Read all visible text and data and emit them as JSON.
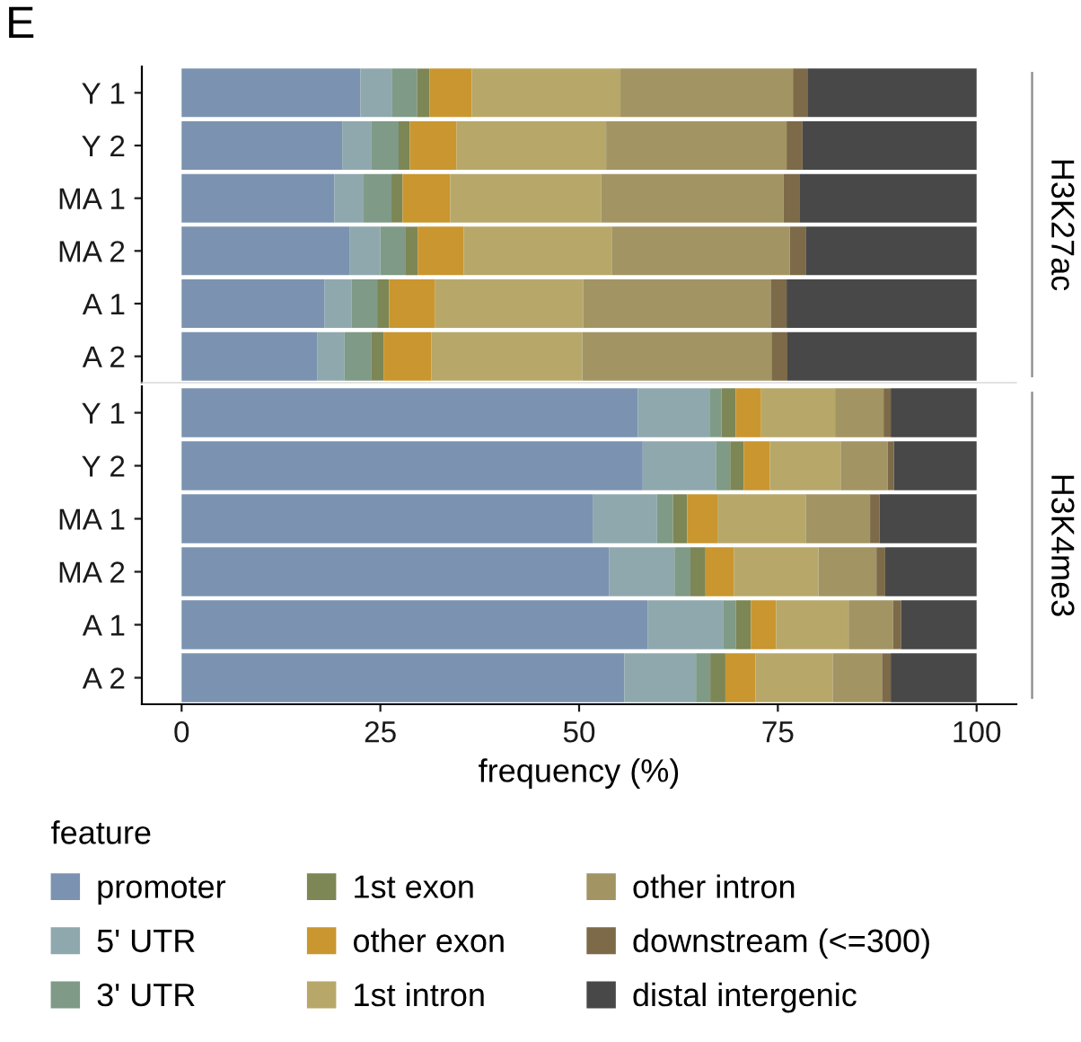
{
  "chart_data": [
    {
      "type": "bar",
      "orientation": "horizontal",
      "stacked": true,
      "annotations": [
        "E",
        {
          "text": "H3K27ac"
        }
      ],
      "categories": [
        "Y 1",
        "Y 2",
        "MA 1",
        "MA 2",
        "A 1",
        "A 2"
      ],
      "xlim": [
        -5,
        105
      ],
      "xticks": [
        0,
        25,
        50,
        75,
        100
      ],
      "tick_labels": "y",
      "grid": false,
      "legend": "bottom",
      "series": [
        {
          "name": "promoter",
          "color": "#7b93b0",
          "values": [
            22.5,
            20.2,
            19.2,
            21.1,
            18.0,
            17.1
          ]
        },
        {
          "name": "5' UTR",
          "color": "#8fa8ad",
          "values": [
            4.0,
            3.7,
            3.7,
            3.9,
            3.4,
            3.4
          ]
        },
        {
          "name": "3' UTR",
          "color": "#7f9a86",
          "values": [
            3.1,
            3.4,
            3.5,
            3.2,
            3.2,
            3.4
          ]
        },
        {
          "name": "1st exon",
          "color": "#7d8655",
          "values": [
            1.6,
            1.4,
            1.4,
            1.5,
            1.5,
            1.5
          ]
        },
        {
          "name": "other exon",
          "color": "#c9962f",
          "values": [
            5.3,
            5.9,
            6.0,
            5.8,
            5.8,
            6.0
          ]
        },
        {
          "name": "1st intron",
          "color": "#b7a86a",
          "values": [
            18.7,
            18.8,
            19.0,
            18.6,
            18.6,
            19.0
          ]
        },
        {
          "name": "other intron",
          "color": "#a29563",
          "values": [
            21.7,
            22.7,
            22.9,
            22.4,
            23.6,
            23.8
          ]
        },
        {
          "name": "downstream (<=300)",
          "color": "#7d6a48",
          "values": [
            1.9,
            2.0,
            2.0,
            2.0,
            2.0,
            2.0
          ]
        },
        {
          "name": "distal intergenic",
          "color": "#484848",
          "values": [
            21.2,
            21.9,
            22.3,
            21.5,
            23.9,
            23.8
          ]
        }
      ]
    },
    {
      "type": "bar",
      "orientation": "horizontal",
      "stacked": true,
      "annotations": [
        {
          "text": "H3K4me3"
        }
      ],
      "xlabel": "frequency (%)",
      "legend_title": "feature",
      "categories": [
        "Y 1",
        "Y 2",
        "MA 1",
        "MA 2",
        "A 1",
        "A 2"
      ],
      "xlim": [
        -5,
        105
      ],
      "xticks": [
        0,
        25,
        50,
        75,
        100
      ],
      "grid": false,
      "legend": "bottom",
      "series": [
        {
          "name": "promoter",
          "color": "#7b93b0",
          "values": [
            57.4,
            58.0,
            51.7,
            53.8,
            58.6,
            55.7
          ]
        },
        {
          "name": "5' UTR",
          "color": "#8fa8ad",
          "values": [
            9.0,
            9.2,
            8.1,
            8.2,
            9.5,
            9.0
          ]
        },
        {
          "name": "3' UTR",
          "color": "#7f9a86",
          "values": [
            1.5,
            1.8,
            2.0,
            2.0,
            1.6,
            1.8
          ]
        },
        {
          "name": "1st exon",
          "color": "#7d8655",
          "values": [
            1.8,
            1.7,
            1.8,
            1.9,
            1.9,
            1.9
          ]
        },
        {
          "name": "other exon",
          "color": "#c9962f",
          "values": [
            3.2,
            3.3,
            3.8,
            3.6,
            3.2,
            3.8
          ]
        },
        {
          "name": "1st intron",
          "color": "#b7a86a",
          "values": [
            9.3,
            8.9,
            11.1,
            10.6,
            9.1,
            9.7
          ]
        },
        {
          "name": "other intron",
          "color": "#a29563",
          "values": [
            6.1,
            5.9,
            8.1,
            7.3,
            5.6,
            6.2
          ]
        },
        {
          "name": "downstream (<=300)",
          "color": "#7d6a48",
          "values": [
            0.9,
            0.8,
            1.2,
            1.1,
            1.0,
            1.1
          ]
        },
        {
          "name": "distal intergenic",
          "color": "#484848",
          "values": [
            10.8,
            10.4,
            12.2,
            11.5,
            9.5,
            10.8
          ]
        }
      ]
    }
  ]
}
